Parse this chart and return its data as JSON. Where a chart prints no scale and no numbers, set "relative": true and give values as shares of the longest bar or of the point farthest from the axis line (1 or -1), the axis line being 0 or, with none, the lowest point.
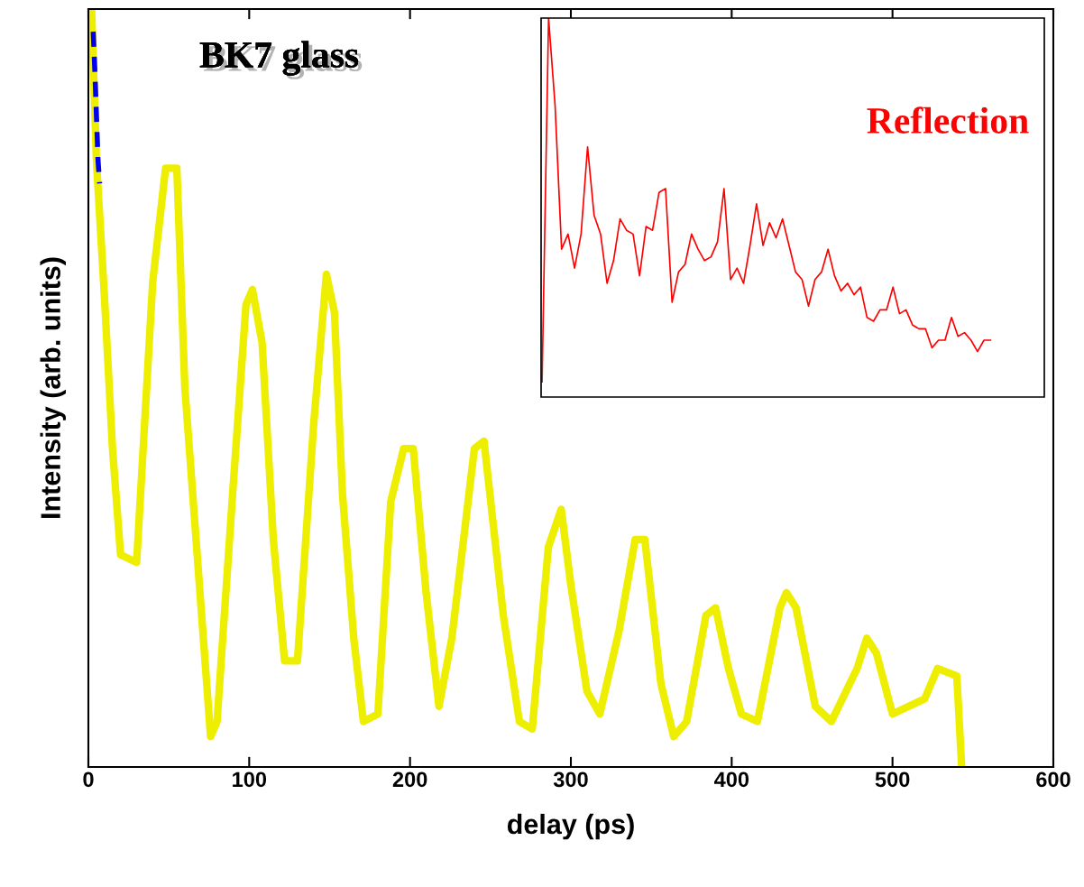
{
  "chart_data": [
    {
      "type": "line",
      "relative": true,
      "xlabel": "delay (ps)",
      "ylabel": "Intensity (arb. units)",
      "annotations": [
        "BK7 glass"
      ],
      "xlim": [
        0,
        600
      ],
      "xticks": [
        0,
        100,
        200,
        300,
        400,
        500,
        600
      ],
      "grid": false,
      "series": [
        {
          "color": "#eeee00",
          "line_style": "solid",
          "x": [
            2,
            5,
            10,
            15,
            20,
            30,
            40,
            48,
            55,
            60,
            68,
            76,
            80,
            90,
            98,
            102,
            108,
            115,
            122,
            130,
            140,
            148,
            153,
            158,
            165,
            171,
            180,
            188,
            196,
            202,
            210,
            218,
            226,
            240,
            246,
            258,
            268,
            276,
            286,
            294,
            300,
            310,
            318,
            330,
            340,
            346,
            356,
            364,
            372,
            384,
            390,
            398,
            406,
            416,
            430,
            434,
            440,
            452,
            462,
            478,
            484,
            490,
            500,
            520,
            528,
            540,
            543
          ],
          "values": [
            1.0,
            0.8,
            0.62,
            0.42,
            0.28,
            0.27,
            0.64,
            0.79,
            0.79,
            0.5,
            0.27,
            0.04,
            0.06,
            0.37,
            0.61,
            0.63,
            0.56,
            0.3,
            0.14,
            0.14,
            0.45,
            0.65,
            0.6,
            0.36,
            0.17,
            0.06,
            0.07,
            0.35,
            0.42,
            0.42,
            0.23,
            0.08,
            0.17,
            0.42,
            0.43,
            0.2,
            0.06,
            0.05,
            0.29,
            0.34,
            0.24,
            0.1,
            0.07,
            0.18,
            0.3,
            0.3,
            0.11,
            0.04,
            0.06,
            0.2,
            0.21,
            0.13,
            0.07,
            0.06,
            0.21,
            0.23,
            0.21,
            0.08,
            0.06,
            0.13,
            0.17,
            0.15,
            0.07,
            0.09,
            0.13,
            0.12,
            0.0
          ]
        },
        {
          "color": "#0000ee",
          "line_style": "dashed",
          "x": [
            3,
            4,
            5,
            6,
            7
          ],
          "values": [
            0.97,
            0.92,
            0.86,
            0.8,
            0.77
          ]
        }
      ]
    },
    {
      "type": "line",
      "relative": true,
      "title": "Reflection",
      "tick_labels": false,
      "grid": false,
      "categories": [
        null,
        null,
        null,
        null,
        null,
        null,
        null,
        null,
        null,
        null,
        null,
        null,
        null,
        null,
        null,
        null,
        null,
        null,
        null,
        null,
        null,
        null,
        null,
        null,
        null,
        null,
        null,
        null,
        null,
        null,
        null,
        null,
        null,
        null,
        null,
        null,
        null,
        null,
        null,
        null,
        null,
        null,
        null,
        null,
        null,
        null,
        null,
        null,
        null,
        null,
        null,
        null,
        null,
        null,
        null,
        null,
        null,
        null,
        null,
        null,
        null,
        null,
        null,
        null,
        null,
        null,
        null,
        null,
        null,
        null
      ],
      "series": [
        {
          "color": "#ff0000",
          "line_style": "solid",
          "values": [
            0.04,
            1.0,
            0.77,
            0.39,
            0.43,
            0.34,
            0.43,
            0.66,
            0.48,
            0.43,
            0.3,
            0.36,
            0.47,
            0.44,
            0.43,
            0.32,
            0.45,
            0.44,
            0.54,
            0.55,
            0.25,
            0.33,
            0.35,
            0.43,
            0.39,
            0.36,
            0.37,
            0.41,
            0.55,
            0.31,
            0.34,
            0.3,
            0.4,
            0.51,
            0.4,
            0.46,
            0.42,
            0.47,
            0.4,
            0.33,
            0.31,
            0.24,
            0.31,
            0.33,
            0.39,
            0.32,
            0.28,
            0.3,
            0.27,
            0.29,
            0.21,
            0.2,
            0.23,
            0.23,
            0.29,
            0.22,
            0.23,
            0.19,
            0.18,
            0.18,
            0.13,
            0.15,
            0.15,
            0.21,
            0.16,
            0.17,
            0.15,
            0.12,
            0.15,
            0.15
          ]
        }
      ]
    }
  ]
}
